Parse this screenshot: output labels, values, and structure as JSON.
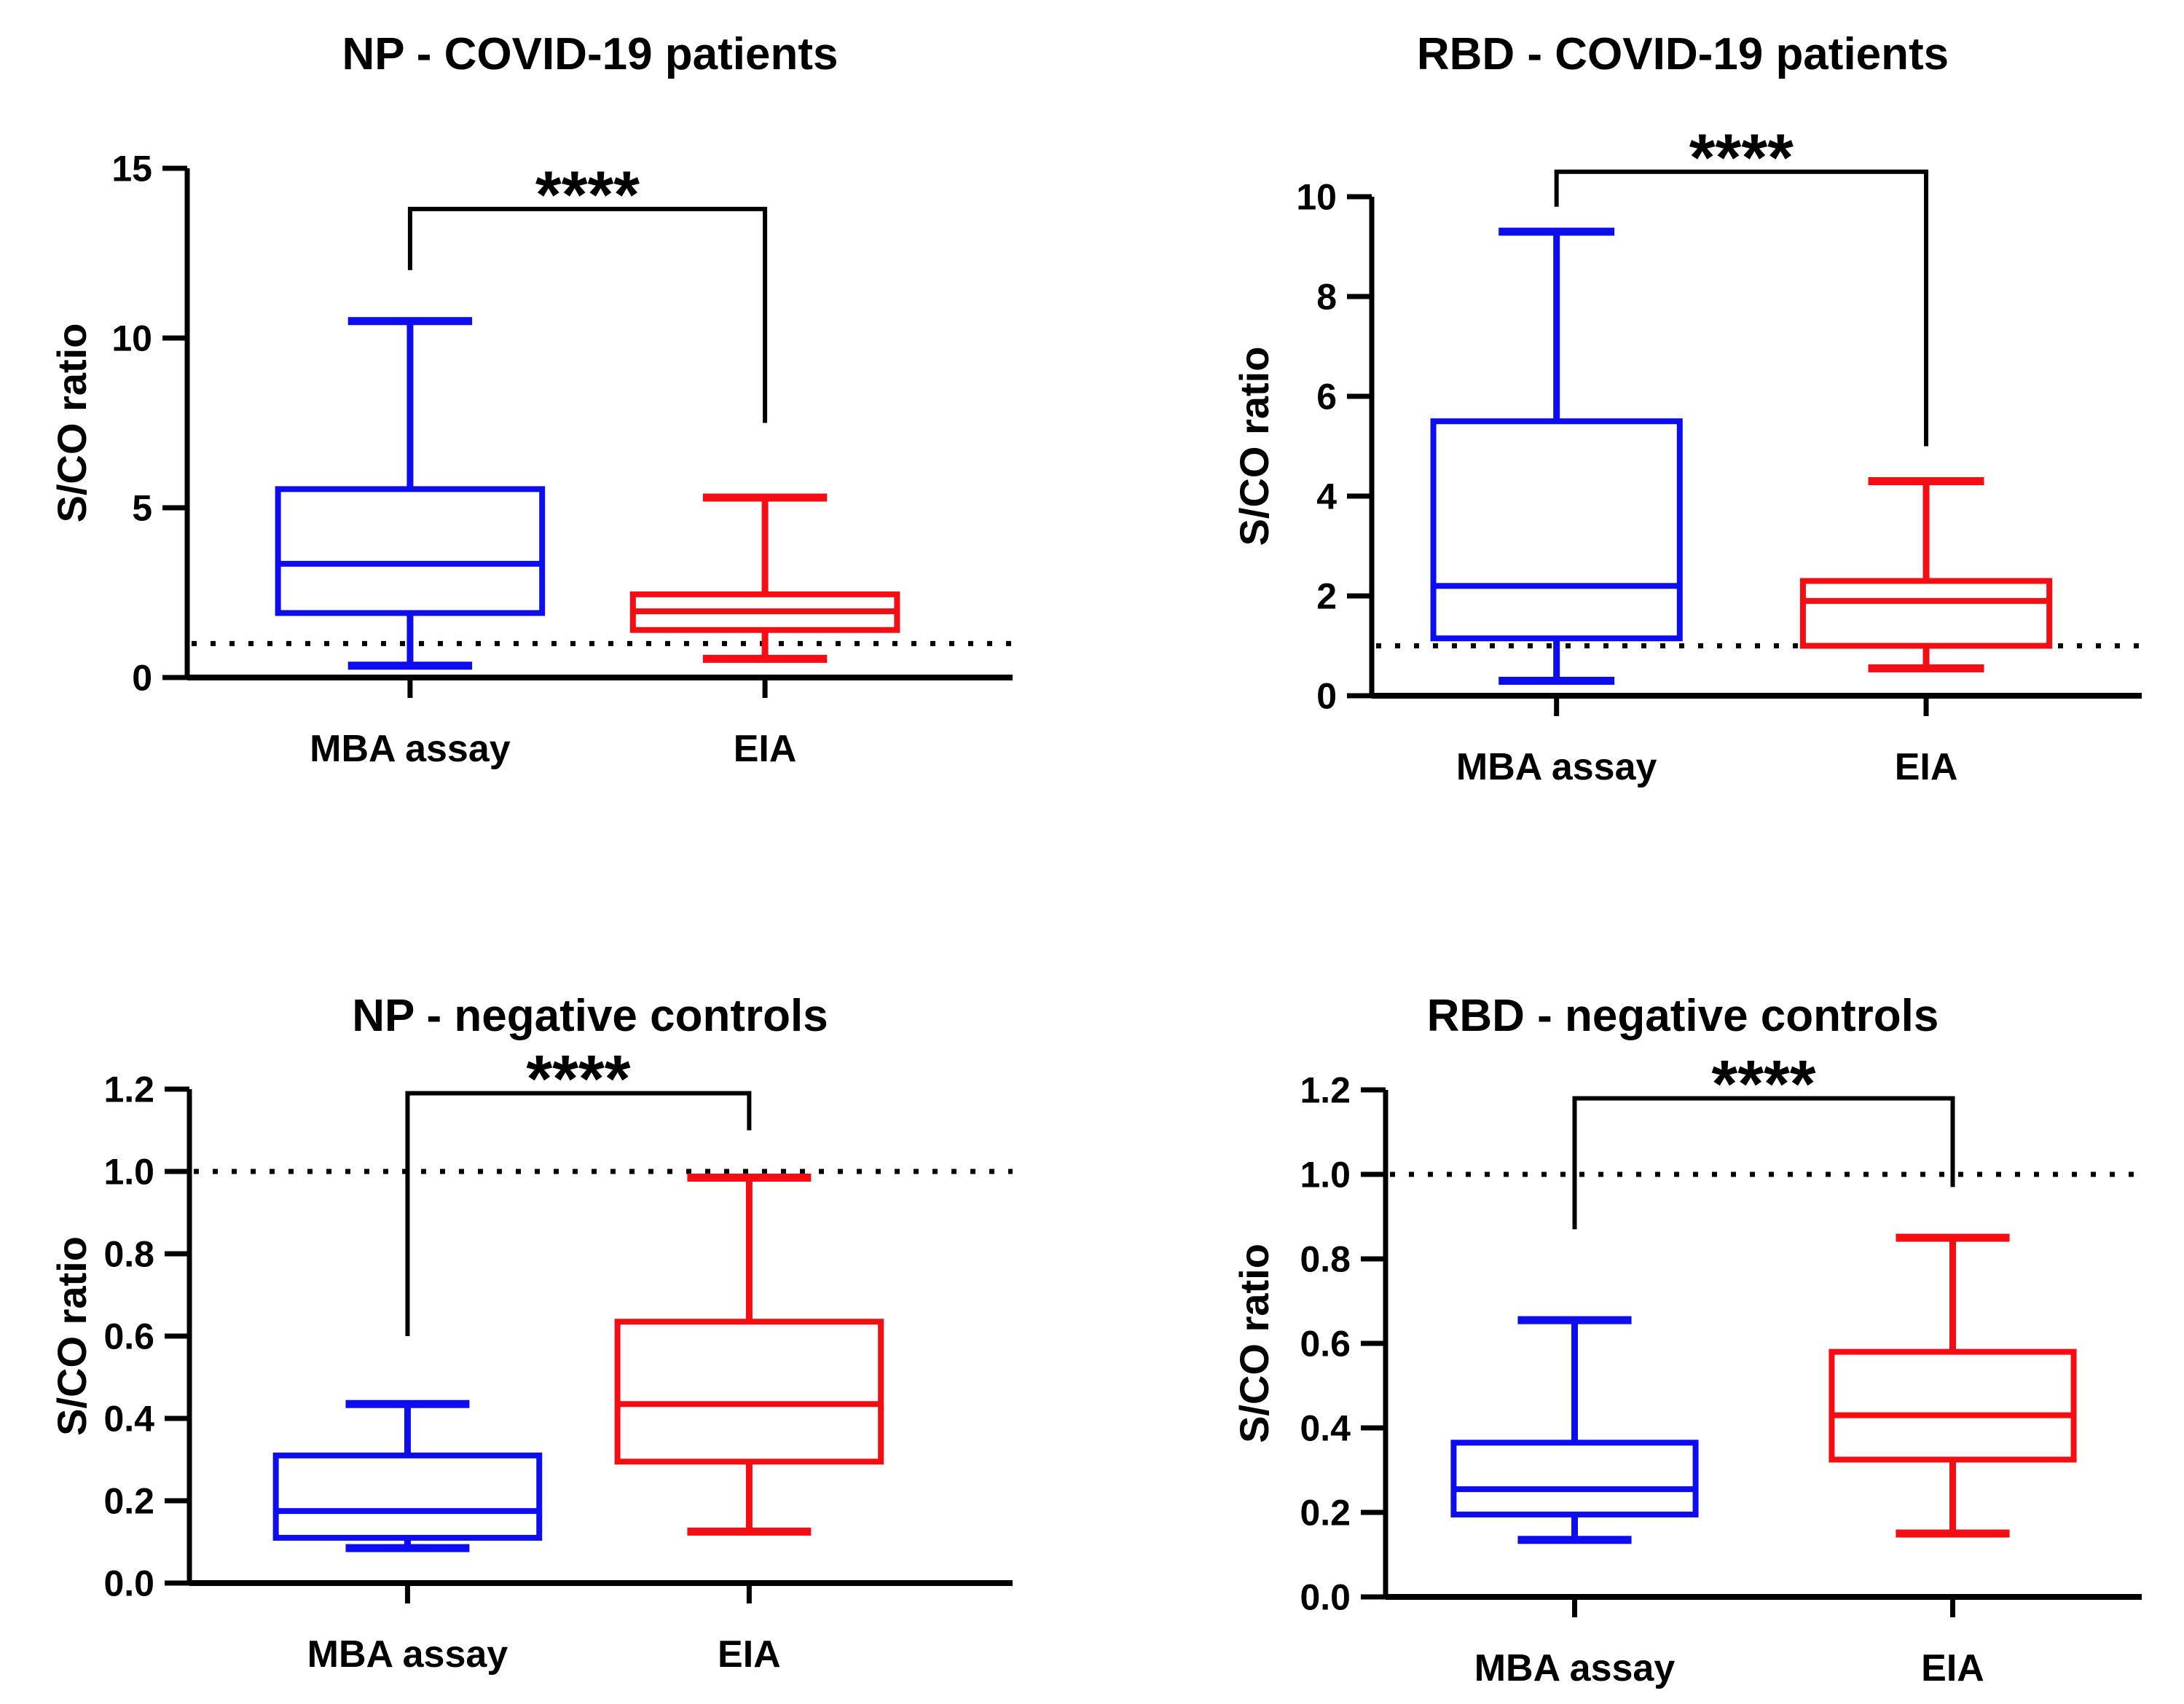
{
  "figure": {
    "background": "#ffffff",
    "colors": {
      "mba": "#0d0df0",
      "eia": "#f50d14",
      "axis": "#000000",
      "bracket": "#000000"
    }
  },
  "chart_data": [
    {
      "type": "box",
      "title": "NP - COVID-19 patients",
      "ylabel": "S/CO ratio",
      "ylim": [
        0,
        15
      ],
      "yticks": [
        0,
        5,
        10,
        15
      ],
      "ytick_labels": [
        "0",
        "5",
        "10",
        "15"
      ],
      "grid": false,
      "cutoff_line_y": 1,
      "categories": [
        "MBA assay",
        "EIA"
      ],
      "series": [
        {
          "name": "MBA assay",
          "color_key": "mba",
          "min": 0.35,
          "q1": 1.9,
          "median": 3.35,
          "q3": 5.55,
          "max": 10.5
        },
        {
          "name": "EIA",
          "color_key": "eia",
          "min": 0.55,
          "q1": 1.4,
          "median": 1.95,
          "q3": 2.45,
          "max": 5.3
        }
      ],
      "significance": {
        "label": "****",
        "left_y": 12.0,
        "right_y": 7.5,
        "top_y": 13.8
      }
    },
    {
      "type": "box",
      "title": "RBD - COVID-19 patients",
      "ylabel": "S/CO ratio",
      "ylim": [
        0,
        10
      ],
      "yticks": [
        0,
        2,
        4,
        6,
        8,
        10
      ],
      "ytick_labels": [
        "0",
        "2",
        "4",
        "6",
        "8",
        "10"
      ],
      "grid": false,
      "cutoff_line_y": 1,
      "categories": [
        "MBA assay",
        "EIA"
      ],
      "series": [
        {
          "name": "MBA assay",
          "color_key": "mba",
          "min": 0.3,
          "q1": 1.15,
          "median": 2.2,
          "q3": 5.5,
          "max": 9.3
        },
        {
          "name": "EIA",
          "color_key": "eia",
          "min": 0.55,
          "q1": 1.0,
          "median": 1.9,
          "q3": 2.3,
          "max": 4.3
        }
      ],
      "significance": {
        "label": "****",
        "left_y": 9.8,
        "right_y": 5.0,
        "top_y": 10.5
      }
    },
    {
      "type": "box",
      "title": "NP - negative controls",
      "ylabel": "S/CO ratio",
      "ylim": [
        0,
        1.2
      ],
      "yticks": [
        0,
        0.2,
        0.4,
        0.6,
        0.8,
        1.0,
        1.2
      ],
      "ytick_labels": [
        "0.0",
        "0.2",
        "0.4",
        "0.6",
        "0.8",
        "1.0",
        "1.2"
      ],
      "grid": false,
      "cutoff_line_y": 1.0,
      "categories": [
        "MBA assay",
        "EIA"
      ],
      "series": [
        {
          "name": "MBA assay",
          "color_key": "mba",
          "min": 0.085,
          "q1": 0.11,
          "median": 0.175,
          "q3": 0.31,
          "max": 0.435
        },
        {
          "name": "EIA",
          "color_key": "eia",
          "min": 0.125,
          "q1": 0.295,
          "median": 0.435,
          "q3": 0.635,
          "max": 0.985
        }
      ],
      "significance": {
        "label": "****",
        "left_y": 0.6,
        "right_y": 1.1,
        "top_y": 1.19
      }
    },
    {
      "type": "box",
      "title": "RBD - negative controls",
      "ylabel": "S/CO ratio",
      "ylim": [
        0,
        1.2
      ],
      "yticks": [
        0,
        0.2,
        0.4,
        0.6,
        0.8,
        1.0,
        1.2
      ],
      "ytick_labels": [
        "0.0",
        "0.2",
        "0.4",
        "0.6",
        "0.8",
        "1.0",
        "1.2"
      ],
      "grid": false,
      "cutoff_line_y": 1.0,
      "categories": [
        "MBA assay",
        "EIA"
      ],
      "series": [
        {
          "name": "MBA assay",
          "color_key": "mba",
          "min": 0.135,
          "q1": 0.195,
          "median": 0.255,
          "q3": 0.365,
          "max": 0.655
        },
        {
          "name": "EIA",
          "color_key": "eia",
          "min": 0.15,
          "q1": 0.325,
          "median": 0.43,
          "q3": 0.58,
          "max": 0.85
        }
      ],
      "significance": {
        "label": "****",
        "left_y": 0.87,
        "right_y": 0.97,
        "top_y": 1.18
      }
    }
  ]
}
